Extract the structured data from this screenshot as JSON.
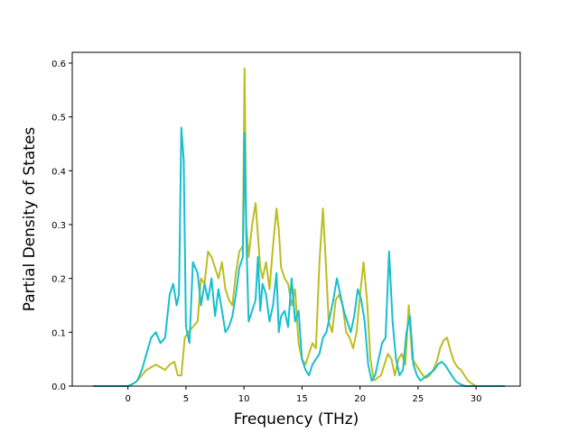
{
  "chart_data": {
    "type": "line",
    "title": "",
    "xlabel": "Frequency (THz)",
    "ylabel": "Partial Density of States",
    "xlim": [
      -4.8,
      33.8
    ],
    "ylim": [
      0,
      0.62
    ],
    "xticks": [
      0,
      5,
      10,
      15,
      20,
      25,
      30
    ],
    "yticks": [
      0.0,
      0.1,
      0.2,
      0.3,
      0.4,
      0.5,
      0.6
    ],
    "xtick_labels": [
      "0",
      "5",
      "10",
      "15",
      "20",
      "25",
      "30"
    ],
    "ytick_labels": [
      "0.0",
      "0.1",
      "0.2",
      "0.3",
      "0.4",
      "0.5",
      "0.6"
    ],
    "legend": "none",
    "grid": false,
    "series": [
      {
        "color": "#bcbd22",
        "x": [
          -3.0,
          0.0,
          0.5,
          0.8,
          1.2,
          1.6,
          2.0,
          2.4,
          2.8,
          3.2,
          3.6,
          4.0,
          4.3,
          4.6,
          4.9,
          5.2,
          5.6,
          6.0,
          6.3,
          6.6,
          6.9,
          7.2,
          7.5,
          7.8,
          8.1,
          8.4,
          8.7,
          9.0,
          9.3,
          9.6,
          9.9,
          10.05,
          10.2,
          10.4,
          10.7,
          11.0,
          11.2,
          11.4,
          11.6,
          11.9,
          12.2,
          12.5,
          12.8,
          13.0,
          13.2,
          13.5,
          13.8,
          14.1,
          14.4,
          14.7,
          15.0,
          15.3,
          15.6,
          15.9,
          16.2,
          16.5,
          16.8,
          17.0,
          17.3,
          17.6,
          17.9,
          18.2,
          18.5,
          18.8,
          19.1,
          19.4,
          19.7,
          20.0,
          20.3,
          20.6,
          20.9,
          21.2,
          21.5,
          21.8,
          22.1,
          22.4,
          22.7,
          23.0,
          23.3,
          23.6,
          23.9,
          24.2,
          24.5,
          24.8,
          25.1,
          25.4,
          25.7,
          26.0,
          26.3,
          26.6,
          26.9,
          27.2,
          27.5,
          27.8,
          28.1,
          28.4,
          28.7,
          29.0,
          29.3,
          29.6,
          30.0,
          32.5
        ],
        "y": [
          0.0,
          0.0,
          0.005,
          0.01,
          0.02,
          0.03,
          0.035,
          0.04,
          0.035,
          0.03,
          0.04,
          0.045,
          0.02,
          0.02,
          0.09,
          0.1,
          0.11,
          0.12,
          0.2,
          0.19,
          0.25,
          0.24,
          0.22,
          0.2,
          0.23,
          0.18,
          0.16,
          0.15,
          0.21,
          0.25,
          0.26,
          0.59,
          0.3,
          0.24,
          0.3,
          0.34,
          0.28,
          0.22,
          0.2,
          0.23,
          0.18,
          0.26,
          0.33,
          0.29,
          0.22,
          0.2,
          0.19,
          0.15,
          0.18,
          0.08,
          0.05,
          0.04,
          0.06,
          0.08,
          0.07,
          0.23,
          0.33,
          0.25,
          0.12,
          0.1,
          0.16,
          0.17,
          0.15,
          0.1,
          0.09,
          0.07,
          0.1,
          0.17,
          0.23,
          0.16,
          0.05,
          0.01,
          0.015,
          0.02,
          0.04,
          0.06,
          0.05,
          0.02,
          0.05,
          0.06,
          0.04,
          0.15,
          0.05,
          0.04,
          0.03,
          0.02,
          0.015,
          0.02,
          0.03,
          0.045,
          0.07,
          0.085,
          0.09,
          0.065,
          0.045,
          0.035,
          0.03,
          0.02,
          0.01,
          0.005,
          0.0,
          0.0
        ]
      },
      {
        "color": "#17becf",
        "x": [
          -3.0,
          0.0,
          0.5,
          0.8,
          1.2,
          1.6,
          2.0,
          2.4,
          2.8,
          3.2,
          3.6,
          3.9,
          4.2,
          4.4,
          4.6,
          4.8,
          5.0,
          5.3,
          5.6,
          6.0,
          6.3,
          6.6,
          6.9,
          7.2,
          7.5,
          7.8,
          8.1,
          8.4,
          8.7,
          9.0,
          9.3,
          9.6,
          9.9,
          10.05,
          10.2,
          10.4,
          10.7,
          11.0,
          11.2,
          11.4,
          11.6,
          11.9,
          12.2,
          12.5,
          12.8,
          13.0,
          13.2,
          13.5,
          13.8,
          14.1,
          14.4,
          14.7,
          15.0,
          15.3,
          15.6,
          15.9,
          16.2,
          16.5,
          16.8,
          17.1,
          17.4,
          17.7,
          18.0,
          18.3,
          18.6,
          18.9,
          19.2,
          19.5,
          19.8,
          20.1,
          20.4,
          20.7,
          21.0,
          21.3,
          21.6,
          21.9,
          22.2,
          22.5,
          22.8,
          23.1,
          23.4,
          23.7,
          24.0,
          24.3,
          24.6,
          24.9,
          25.2,
          25.5,
          25.8,
          26.1,
          26.4,
          26.7,
          27.0,
          27.3,
          27.6,
          27.9,
          28.2,
          28.5,
          28.8,
          29.1,
          29.4,
          30.0,
          32.5
        ],
        "y": [
          0.0,
          0.0,
          0.005,
          0.01,
          0.03,
          0.06,
          0.09,
          0.1,
          0.08,
          0.09,
          0.17,
          0.19,
          0.15,
          0.17,
          0.48,
          0.42,
          0.11,
          0.08,
          0.23,
          0.21,
          0.15,
          0.19,
          0.16,
          0.2,
          0.13,
          0.18,
          0.14,
          0.1,
          0.11,
          0.13,
          0.17,
          0.22,
          0.24,
          0.47,
          0.28,
          0.12,
          0.14,
          0.16,
          0.24,
          0.14,
          0.19,
          0.17,
          0.12,
          0.15,
          0.21,
          0.1,
          0.13,
          0.14,
          0.11,
          0.2,
          0.12,
          0.14,
          0.05,
          0.03,
          0.02,
          0.04,
          0.05,
          0.06,
          0.09,
          0.1,
          0.13,
          0.16,
          0.2,
          0.17,
          0.14,
          0.12,
          0.1,
          0.13,
          0.18,
          0.16,
          0.12,
          0.04,
          0.01,
          0.02,
          0.05,
          0.08,
          0.09,
          0.25,
          0.12,
          0.05,
          0.02,
          0.03,
          0.1,
          0.13,
          0.04,
          0.02,
          0.01,
          0.015,
          0.02,
          0.025,
          0.03,
          0.04,
          0.045,
          0.04,
          0.03,
          0.02,
          0.01,
          0.005,
          0.002,
          0.0,
          0.0,
          0.0,
          0.0
        ]
      }
    ]
  }
}
